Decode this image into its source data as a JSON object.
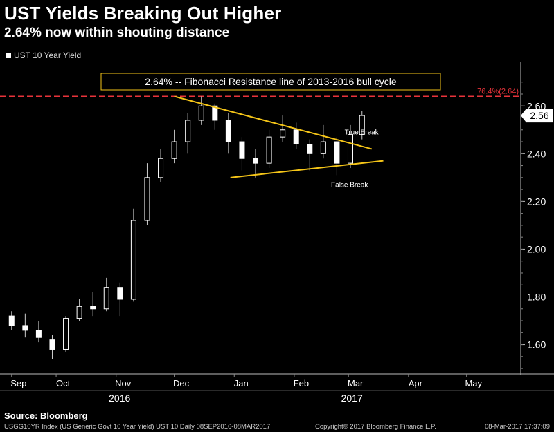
{
  "header": {
    "title": "UST Yields Breaking Out Higher",
    "subtitle": "2.64% now within shouting distance"
  },
  "legend": {
    "series_name": "UST 10 Year Yield"
  },
  "chart_data": {
    "type": "candlestick",
    "series_name": "UST 10 Year Yield",
    "ylim": [
      1.48,
      2.76
    ],
    "yticks": [
      1.6,
      1.8,
      2.0,
      2.2,
      2.4,
      2.6
    ],
    "ytick_labels": [
      "1.60",
      "1.80",
      "2.00",
      "2.20",
      "2.40",
      "2.60"
    ],
    "grid": false,
    "month_labels": [
      {
        "label": "Sep",
        "date": "2016-09-08"
      },
      {
        "label": "Oct",
        "date": "2016-10-01"
      },
      {
        "label": "Nov",
        "date": "2016-11-01"
      },
      {
        "label": "Dec",
        "date": "2016-12-01"
      },
      {
        "label": "Jan",
        "date": "2017-01-01"
      },
      {
        "label": "Feb",
        "date": "2017-02-01"
      },
      {
        "label": "Mar",
        "date": "2017-03-01"
      },
      {
        "label": "Apr",
        "date": "2017-04-01"
      },
      {
        "label": "May",
        "date": "2017-05-01"
      }
    ],
    "year_labels": [
      {
        "label": "2016",
        "date": "2016-11-01"
      },
      {
        "label": "2017",
        "date": "2017-03-01"
      }
    ],
    "x_range": [
      "2016-09-02",
      "2017-05-29"
    ],
    "last_value": 2.56,
    "last_value_label": "2.56",
    "fib_level": {
      "value": 2.64,
      "label": "76.4%(2.64)",
      "color": "#e8333a"
    },
    "annotation_box": "2.64% -- Fibonacci Resistance line of 2013-2016 bull cycle",
    "trendlines": [
      {
        "name": "resistance",
        "from": {
          "date": "2016-12-01",
          "value": 2.64
        },
        "to": {
          "date": "2017-03-13",
          "value": 2.42
        }
      },
      {
        "name": "support",
        "from": {
          "date": "2016-12-30",
          "value": 2.3
        },
        "to": {
          "date": "2017-03-19",
          "value": 2.37
        }
      }
    ],
    "text_annotations": [
      {
        "text": "True Break",
        "date": "2017-02-27",
        "value": 2.48
      },
      {
        "text": "False Break",
        "date": "2017-02-20",
        "value": 2.26
      }
    ],
    "trend_color": "#f5c518",
    "candles": [
      {
        "date": "2016-09-08",
        "open": 1.72,
        "high": 1.74,
        "low": 1.66,
        "close": 1.68
      },
      {
        "date": "2016-09-15",
        "open": 1.68,
        "high": 1.73,
        "low": 1.63,
        "close": 1.66
      },
      {
        "date": "2016-09-22",
        "open": 1.66,
        "high": 1.7,
        "low": 1.61,
        "close": 1.63
      },
      {
        "date": "2016-09-29",
        "open": 1.62,
        "high": 1.64,
        "low": 1.54,
        "close": 1.58
      },
      {
        "date": "2016-10-06",
        "open": 1.58,
        "high": 1.72,
        "low": 1.57,
        "close": 1.71
      },
      {
        "date": "2016-10-13",
        "open": 1.71,
        "high": 1.79,
        "low": 1.7,
        "close": 1.76
      },
      {
        "date": "2016-10-20",
        "open": 1.76,
        "high": 1.82,
        "low": 1.72,
        "close": 1.75
      },
      {
        "date": "2016-10-27",
        "open": 1.75,
        "high": 1.88,
        "low": 1.74,
        "close": 1.84
      },
      {
        "date": "2016-11-03",
        "open": 1.84,
        "high": 1.86,
        "low": 1.72,
        "close": 1.79
      },
      {
        "date": "2016-11-10",
        "open": 1.79,
        "high": 2.17,
        "low": 1.78,
        "close": 2.12
      },
      {
        "date": "2016-11-17",
        "open": 2.12,
        "high": 2.36,
        "low": 2.1,
        "close": 2.3
      },
      {
        "date": "2016-11-24",
        "open": 2.3,
        "high": 2.42,
        "low": 2.28,
        "close": 2.38
      },
      {
        "date": "2016-12-01",
        "open": 2.38,
        "high": 2.5,
        "low": 2.36,
        "close": 2.45
      },
      {
        "date": "2016-12-08",
        "open": 2.45,
        "high": 2.57,
        "low": 2.4,
        "close": 2.54
      },
      {
        "date": "2016-12-15",
        "open": 2.54,
        "high": 2.64,
        "low": 2.52,
        "close": 2.6
      },
      {
        "date": "2016-12-22",
        "open": 2.6,
        "high": 2.61,
        "low": 2.5,
        "close": 2.54
      },
      {
        "date": "2016-12-29",
        "open": 2.54,
        "high": 2.57,
        "low": 2.4,
        "close": 2.45
      },
      {
        "date": "2017-01-05",
        "open": 2.45,
        "high": 2.47,
        "low": 2.33,
        "close": 2.38
      },
      {
        "date": "2017-01-12",
        "open": 2.38,
        "high": 2.42,
        "low": 2.3,
        "close": 2.36
      },
      {
        "date": "2017-01-19",
        "open": 2.36,
        "high": 2.5,
        "low": 2.34,
        "close": 2.47
      },
      {
        "date": "2017-01-26",
        "open": 2.47,
        "high": 2.56,
        "low": 2.45,
        "close": 2.5
      },
      {
        "date": "2017-02-02",
        "open": 2.5,
        "high": 2.53,
        "low": 2.42,
        "close": 2.44
      },
      {
        "date": "2017-02-09",
        "open": 2.44,
        "high": 2.46,
        "low": 2.33,
        "close": 2.4
      },
      {
        "date": "2017-02-16",
        "open": 2.4,
        "high": 2.52,
        "low": 2.38,
        "close": 2.45
      },
      {
        "date": "2017-02-23",
        "open": 2.45,
        "high": 2.47,
        "low": 2.31,
        "close": 2.36
      },
      {
        "date": "2017-03-02",
        "open": 2.36,
        "high": 2.52,
        "low": 2.34,
        "close": 2.48
      },
      {
        "date": "2017-03-08",
        "open": 2.48,
        "high": 2.58,
        "low": 2.46,
        "close": 2.56
      }
    ]
  },
  "footer": {
    "source": "Source: Bloomberg",
    "left": "USGG10YR Index (US Generic Govt 10 Year Yield) UST 10  Daily 08SEP2016-08MAR2017",
    "middle": "Copyright© 2017 Bloomberg Finance L.P.",
    "right": "08-Mar-2017  17:37:09"
  }
}
